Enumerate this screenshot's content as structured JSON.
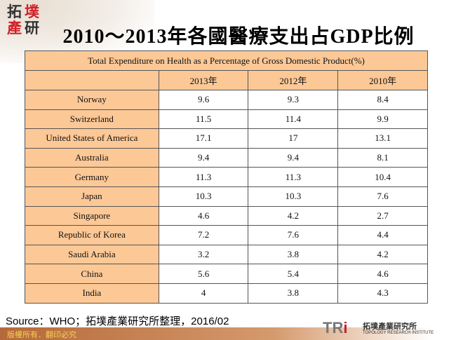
{
  "logo": {
    "chars": [
      "拓",
      "墣",
      "產",
      "研"
    ]
  },
  "title": "2010～2013年各國醫療支出占GDP比例",
  "table": {
    "caption": "Total Expenditure  on Health  as a Percentage of Gross Domestic Product(%)",
    "columns": [
      "",
      "2013年",
      "2012年",
      "2010年"
    ],
    "rows": [
      [
        "Norway",
        "9.6",
        "9.3",
        "8.4"
      ],
      [
        "Switzerland",
        "11.5",
        "11.4",
        "9.9"
      ],
      [
        "United  States of America",
        "17.1",
        "17",
        "13.1"
      ],
      [
        "Australia",
        "9.4",
        "9.4",
        "8.1"
      ],
      [
        "Germany",
        "11.3",
        "11.3",
        "10.4"
      ],
      [
        "Japan",
        "10.3",
        "10.3",
        "7.6"
      ],
      [
        "Singapore",
        "4.6",
        "4.2",
        "2.7"
      ],
      [
        "Republic  of Korea",
        "7.2",
        "7.6",
        "4.4"
      ],
      [
        "Saudi Arabia",
        "3.2",
        "3.8",
        "4.2"
      ],
      [
        "China",
        "5.6",
        "5.4",
        "4.6"
      ],
      [
        "India",
        "4",
        "3.8",
        "4.3"
      ]
    ]
  },
  "source": "Source：WHO；拓墣產業研究所整理，2016/02",
  "footer": {
    "copyright": "版權所有．翻印必究",
    "brand_tr": "TR",
    "brand_i": "i",
    "brand_cn": "拓墣產業研究所",
    "brand_en": "TOPOLOGY RESEARCH INSTITUTE"
  },
  "colors": {
    "header_bg": "#fcc896",
    "logo_red": "#d0202a"
  }
}
